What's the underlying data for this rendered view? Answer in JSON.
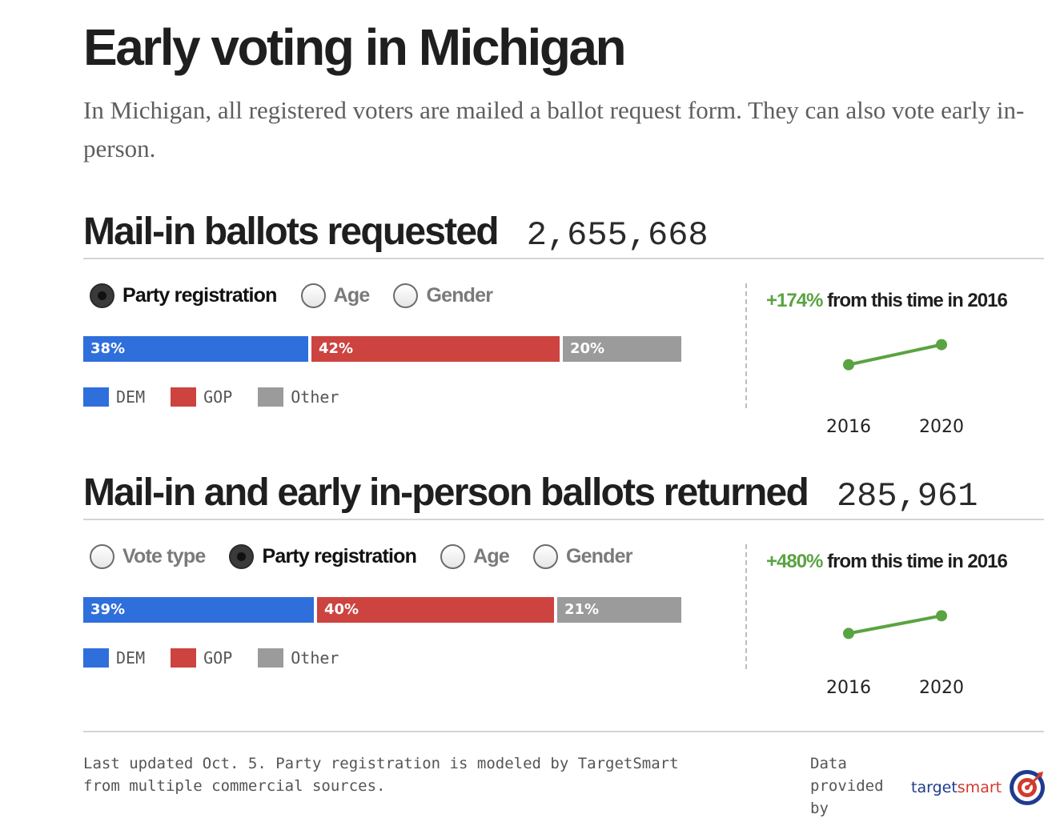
{
  "page": {
    "title": "Early voting in Michigan",
    "subtitle": "In Michigan, all registered voters are mailed a ballot request form. They can also vote early in-person."
  },
  "sections": [
    {
      "title": "Mail-in ballots requested",
      "total": "2,655,668",
      "options": [
        {
          "label": "Party registration",
          "selected": true
        },
        {
          "label": "Age",
          "selected": false
        },
        {
          "label": "Gender",
          "selected": false
        }
      ],
      "growth": {
        "pct": "+174%",
        "text": "from this time in 2016"
      }
    },
    {
      "title": "Mail-in and early in-person ballots returned",
      "total": "285,961",
      "options": [
        {
          "label": "Vote type",
          "selected": false
        },
        {
          "label": "Party registration",
          "selected": true
        },
        {
          "label": "Age",
          "selected": false
        },
        {
          "label": "Gender",
          "selected": false
        }
      ],
      "growth": {
        "pct": "+480%",
        "text": "from this time in 2016"
      }
    }
  ],
  "colors": {
    "dem": "#2f6fdc",
    "gop": "#cc4340",
    "other": "#9b9b9b",
    "growth": "#5aa342"
  },
  "chart_data": [
    {
      "type": "bar",
      "orientation": "horizontal-stacked-percent",
      "title": "Mail-in ballots requested",
      "categories": [
        "DEM",
        "GOP",
        "Other"
      ],
      "values": [
        38,
        42,
        20
      ],
      "labels": [
        "38%",
        "42%",
        "20%"
      ],
      "legend": [
        "DEM",
        "GOP",
        "Other"
      ]
    },
    {
      "type": "line",
      "title": "+174% from this time in 2016",
      "x": [
        "2016",
        "2020"
      ],
      "values": [
        1,
        2.74
      ],
      "ylim": [
        0,
        3.2
      ]
    },
    {
      "type": "bar",
      "orientation": "horizontal-stacked-percent",
      "title": "Mail-in and early in-person ballots returned",
      "categories": [
        "DEM",
        "GOP",
        "Other"
      ],
      "values": [
        39,
        40,
        21
      ],
      "labels": [
        "39%",
        "40%",
        "21%"
      ],
      "legend": [
        "DEM",
        "GOP",
        "Other"
      ]
    },
    {
      "type": "line",
      "title": "+480% from this time in 2016",
      "x": [
        "2016",
        "2020"
      ],
      "values": [
        1,
        5.8
      ],
      "ylim": [
        0,
        10
      ]
    }
  ],
  "footer": {
    "note": "Last updated Oct. 5. Party registration is modeled by TargetSmart from multiple commercial sources.",
    "provider_label": "Data provided by",
    "logo_main": "target",
    "logo_accent": "smart"
  }
}
